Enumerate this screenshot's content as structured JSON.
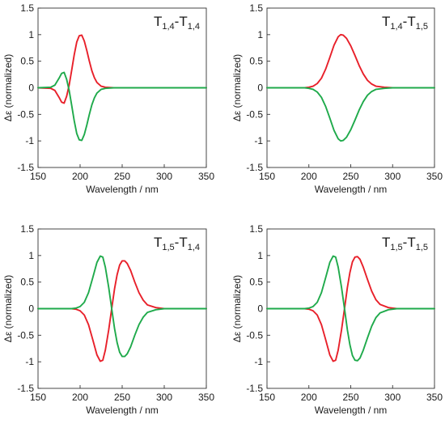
{
  "figure": {
    "colors": {
      "red": "#e8202a",
      "green": "#1faa4b",
      "axis": "#222222",
      "frame": "#333333"
    }
  },
  "chart_data": [
    {
      "type": "line",
      "title": {
        "main": "T",
        "s1": "1,4",
        "dash": "-T",
        "s2": "1,4"
      },
      "xlabel": "Wavelength / nm",
      "ylabel": "Δε (normalized)",
      "xlim": [
        150,
        350
      ],
      "ylim": [
        -1.5,
        1.5
      ],
      "xticks": [
        "150",
        "200",
        "250",
        "300",
        "350"
      ],
      "yticks": [
        "1.5",
        "1",
        "0.5",
        "0",
        "-0.5",
        "-1",
        "-1.5"
      ],
      "grid": false,
      "series": [
        {
          "color": "#e8202a",
          "x": [
            150,
            165,
            170,
            175,
            178,
            181,
            184,
            187,
            190,
            193,
            196,
            199,
            202,
            205,
            208,
            211,
            214,
            217,
            220,
            225,
            230,
            240,
            260,
            300,
            350
          ],
          "y": [
            0,
            -0.01,
            -0.05,
            -0.18,
            -0.27,
            -0.29,
            -0.16,
            0.05,
            0.33,
            0.62,
            0.86,
            0.98,
            0.99,
            0.88,
            0.7,
            0.5,
            0.32,
            0.19,
            0.1,
            0.03,
            0.01,
            0,
            0,
            0,
            0
          ]
        },
        {
          "color": "#1faa4b",
          "x": [
            150,
            165,
            170,
            175,
            178,
            181,
            184,
            187,
            190,
            193,
            196,
            199,
            202,
            205,
            208,
            211,
            214,
            217,
            220,
            225,
            230,
            240,
            260,
            300,
            350
          ],
          "y": [
            0,
            0.01,
            0.05,
            0.18,
            0.27,
            0.29,
            0.16,
            -0.05,
            -0.33,
            -0.62,
            -0.86,
            -0.98,
            -0.99,
            -0.88,
            -0.7,
            -0.5,
            -0.32,
            -0.19,
            -0.1,
            -0.03,
            -0.01,
            0,
            0,
            0,
            0
          ]
        }
      ]
    },
    {
      "type": "line",
      "title": {
        "main": "T",
        "s1": "1,4",
        "dash": "-T",
        "s2": "1,5"
      },
      "xlabel": "Wavelength / nm",
      "ylabel": "Δε (normalized)",
      "xlim": [
        150,
        350
      ],
      "ylim": [
        -1.5,
        1.5
      ],
      "xticks": [
        "150",
        "200",
        "250",
        "300",
        "350"
      ],
      "yticks": [
        "1.5",
        "1",
        "0.5",
        "0",
        "-0.5",
        "-1",
        "-1.5"
      ],
      "grid": false,
      "series": [
        {
          "color": "#e8202a",
          "x": [
            150,
            190,
            195,
            200,
            205,
            210,
            215,
            220,
            225,
            230,
            235,
            238,
            241,
            245,
            250,
            255,
            260,
            265,
            270,
            275,
            280,
            290,
            300,
            350
          ],
          "y": [
            0,
            0,
            0,
            0.01,
            0.03,
            0.08,
            0.18,
            0.35,
            0.57,
            0.8,
            0.96,
            1.0,
            0.99,
            0.93,
            0.79,
            0.61,
            0.42,
            0.26,
            0.14,
            0.07,
            0.03,
            0.01,
            0,
            0
          ]
        },
        {
          "color": "#1faa4b",
          "x": [
            150,
            190,
            195,
            200,
            205,
            210,
            215,
            220,
            225,
            230,
            235,
            238,
            241,
            245,
            250,
            255,
            260,
            265,
            270,
            275,
            280,
            290,
            300,
            350
          ],
          "y": [
            0,
            0,
            0,
            -0.01,
            -0.03,
            -0.08,
            -0.18,
            -0.35,
            -0.57,
            -0.8,
            -0.96,
            -1.0,
            -0.99,
            -0.93,
            -0.79,
            -0.61,
            -0.42,
            -0.26,
            -0.14,
            -0.07,
            -0.03,
            -0.01,
            0,
            0
          ]
        }
      ]
    },
    {
      "type": "line",
      "title": {
        "main": "T",
        "s1": "1,5",
        "dash": "-T",
        "s2": "1,4"
      },
      "xlabel": "Wavelength / nm",
      "ylabel": "Δε (normalized)",
      "xlim": [
        150,
        350
      ],
      "ylim": [
        -1.5,
        1.5
      ],
      "xticks": [
        "150",
        "200",
        "250",
        "300",
        "350"
      ],
      "yticks": [
        "1.5",
        "1",
        "0.5",
        "0",
        "-0.5",
        "-1",
        "-1.5"
      ],
      "grid": false,
      "series": [
        {
          "color": "#e8202a",
          "x": [
            150,
            190,
            195,
            200,
            205,
            210,
            215,
            220,
            224,
            227,
            230,
            234,
            238,
            241,
            244,
            247,
            250,
            253,
            256,
            260,
            265,
            270,
            275,
            280,
            290,
            300,
            350
          ],
          "y": [
            0,
            0,
            -0.01,
            -0.04,
            -0.12,
            -0.3,
            -0.58,
            -0.87,
            -0.99,
            -0.97,
            -0.78,
            -0.4,
            0.05,
            0.38,
            0.64,
            0.82,
            0.9,
            0.9,
            0.85,
            0.72,
            0.5,
            0.3,
            0.16,
            0.07,
            0.02,
            0,
            0
          ]
        },
        {
          "color": "#1faa4b",
          "x": [
            150,
            190,
            195,
            200,
            205,
            210,
            215,
            220,
            224,
            227,
            230,
            234,
            238,
            241,
            244,
            247,
            250,
            253,
            256,
            260,
            265,
            270,
            275,
            280,
            290,
            300,
            350
          ],
          "y": [
            0,
            0,
            0.01,
            0.04,
            0.12,
            0.3,
            0.58,
            0.87,
            0.99,
            0.97,
            0.78,
            0.4,
            -0.05,
            -0.38,
            -0.64,
            -0.82,
            -0.9,
            -0.9,
            -0.85,
            -0.72,
            -0.5,
            -0.3,
            -0.16,
            -0.07,
            -0.02,
            0,
            0
          ]
        }
      ]
    },
    {
      "type": "line",
      "title": {
        "main": "T",
        "s1": "1,5",
        "dash": "-T",
        "s2": "1,5"
      },
      "xlabel": "Wavelength / nm",
      "ylabel": "Δε (normalized)",
      "xlim": [
        150,
        350
      ],
      "ylim": [
        -1.5,
        1.5
      ],
      "xticks": [
        "150",
        "200",
        "250",
        "300",
        "350"
      ],
      "yticks": [
        "1.5",
        "1",
        "0.5",
        "0",
        "-0.5",
        "-1",
        "-1.5"
      ],
      "grid": false,
      "series": [
        {
          "color": "#e8202a",
          "x": [
            150,
            195,
            200,
            205,
            210,
            215,
            220,
            225,
            229,
            232,
            235,
            239,
            243,
            246,
            249,
            252,
            255,
            258,
            261,
            265,
            270,
            275,
            280,
            285,
            295,
            305,
            350
          ],
          "y": [
            0,
            0,
            -0.01,
            -0.04,
            -0.12,
            -0.3,
            -0.58,
            -0.87,
            -0.99,
            -0.97,
            -0.78,
            -0.4,
            0.05,
            0.4,
            0.68,
            0.88,
            0.97,
            0.98,
            0.93,
            0.78,
            0.55,
            0.33,
            0.17,
            0.08,
            0.02,
            0,
            0
          ]
        },
        {
          "color": "#1faa4b",
          "x": [
            150,
            195,
            200,
            205,
            210,
            215,
            220,
            225,
            229,
            232,
            235,
            239,
            243,
            246,
            249,
            252,
            255,
            258,
            261,
            265,
            270,
            275,
            280,
            285,
            295,
            305,
            350
          ],
          "y": [
            0,
            0,
            0.01,
            0.04,
            0.12,
            0.3,
            0.58,
            0.87,
            0.99,
            0.97,
            0.78,
            0.4,
            -0.05,
            -0.4,
            -0.68,
            -0.88,
            -0.97,
            -0.98,
            -0.93,
            -0.78,
            -0.55,
            -0.33,
            -0.17,
            -0.08,
            -0.02,
            0,
            0
          ]
        }
      ]
    }
  ]
}
